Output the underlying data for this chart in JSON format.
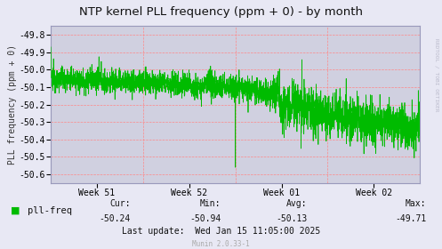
{
  "title": "NTP kernel PLL frequency (ppm + 0) - by month",
  "ylabel": "PLL frequency (ppm + 0)",
  "fig_bg_color": "#e8e8f4",
  "plot_bg_color": "#d0d0e0",
  "grid_color": "#ff8888",
  "line_color": "#00bb00",
  "spine_color": "#9999bb",
  "ylim": [
    -50.65,
    -49.75
  ],
  "yticks": [
    -49.8,
    -49.9,
    -50.0,
    -50.1,
    -50.2,
    -50.3,
    -50.4,
    -50.5,
    -50.6
  ],
  "xtick_labels": [
    "Week 51",
    "Week 52",
    "Week 01",
    "Week 02"
  ],
  "watermark": "RRDTOOL / TOBI OETIKER",
  "legend_label": "pll-freq",
  "cur": "-50.24",
  "min_val": "-50.94",
  "avg": "-50.13",
  "max_val": "-49.71",
  "last_update": "Last update:  Wed Jan 15 11:05:00 2025",
  "munin_version": "Munin 2.0.33-1",
  "title_fontsize": 9.5,
  "axis_label_fontsize": 7,
  "tick_fontsize": 7,
  "legend_fontsize": 7.5,
  "footer_fontsize": 7
}
